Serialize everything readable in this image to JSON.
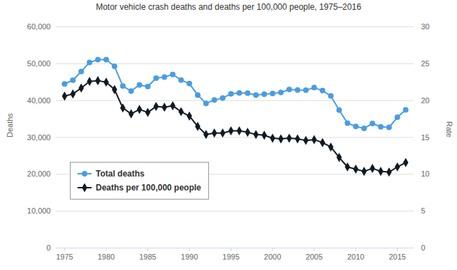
{
  "chart_data": {
    "type": "line",
    "title": "Motor vehicle crash deaths and deaths per 100,000 people, 1975–2016",
    "ylabel": "Deaths",
    "y2label": "Rate",
    "x": [
      1975,
      1976,
      1977,
      1978,
      1979,
      1980,
      1981,
      1982,
      1983,
      1984,
      1985,
      1986,
      1987,
      1988,
      1989,
      1990,
      1991,
      1992,
      1993,
      1994,
      1995,
      1996,
      1997,
      1998,
      1999,
      2000,
      2001,
      2002,
      2003,
      2004,
      2005,
      2006,
      2007,
      2008,
      2009,
      2010,
      2011,
      2012,
      2013,
      2014,
      2015,
      2016
    ],
    "series": [
      {
        "name": "Total deaths",
        "color": "#4a9de0",
        "marker": "circle",
        "values": [
          44525,
          45523,
          47878,
          50331,
          51093,
          51091,
          49301,
          43945,
          42589,
          44257,
          43825,
          46087,
          46390,
          47087,
          45582,
          44599,
          41508,
          39250,
          40150,
          40716,
          41817,
          42065,
          42013,
          41501,
          41717,
          41945,
          42196,
          43005,
          42884,
          42836,
          43510,
          42708,
          41259,
          37423,
          33883,
          32999,
          32479,
          33782,
          32893,
          32744,
          35484,
          37461
        ]
      },
      {
        "name": "Deaths per 100,000 people",
        "color": "#111a22",
        "marker": "diamond",
        "axis": "y2",
        "values": [
          20.6,
          20.9,
          21.7,
          22.6,
          22.7,
          22.5,
          21.5,
          19.0,
          18.2,
          18.8,
          18.4,
          19.2,
          19.1,
          19.3,
          18.5,
          17.9,
          16.5,
          15.4,
          15.6,
          15.6,
          15.9,
          15.9,
          15.7,
          15.4,
          15.3,
          14.9,
          14.8,
          14.9,
          14.8,
          14.6,
          14.7,
          14.3,
          13.7,
          12.3,
          11.0,
          10.7,
          10.4,
          10.8,
          10.4,
          10.3,
          11.0,
          11.6
        ]
      }
    ],
    "xlim": [
      1974,
      2017
    ],
    "xticks": [
      1975,
      1980,
      1985,
      1990,
      1995,
      2000,
      2005,
      2010,
      2015
    ],
    "ylim": [
      0,
      60000
    ],
    "yticks": [
      0,
      {
        "value": 10000,
        "label": "10,000"
      },
      {
        "value": 20000,
        "label": "20,000"
      },
      {
        "value": 30000,
        "label": "30,000"
      },
      {
        "value": 40000,
        "label": "40,000"
      },
      {
        "value": 50000,
        "label": "50,000"
      },
      {
        "value": 60000,
        "label": "60,000"
      }
    ],
    "y2lim": [
      0,
      30
    ],
    "y2ticks": [
      0,
      5,
      10,
      15,
      20,
      25,
      30
    ],
    "grid": true,
    "legend": "lower left"
  }
}
